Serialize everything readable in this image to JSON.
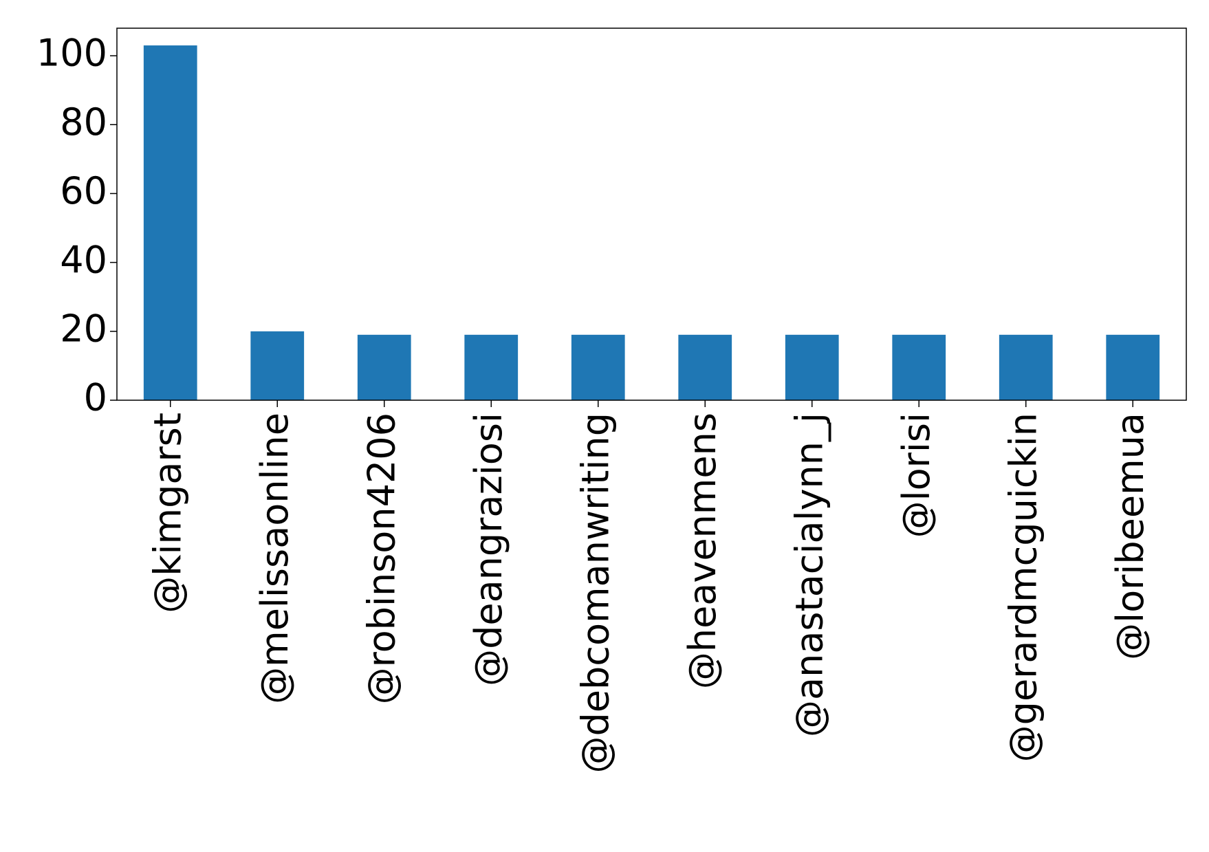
{
  "chart_data": {
    "type": "bar",
    "title": "",
    "xlabel": "",
    "ylabel": "",
    "categories": [
      "@kimgarst",
      "@melissaonline",
      "@robinson4206",
      "@deangraziosi",
      "@debcomanwriting",
      "@heavenmens",
      "@anastacialynn_j",
      "@lorisi",
      "@gerardmcguickin",
      "@loribeemua"
    ],
    "values": [
      103,
      20,
      19,
      19,
      19,
      19,
      19,
      19,
      19,
      19
    ],
    "ylim": [
      0,
      108
    ],
    "yticks": [
      0,
      20,
      40,
      60,
      80,
      100
    ],
    "ytick_labels": [
      "0",
      "20",
      "40",
      "60",
      "80",
      "100"
    ],
    "bar_color": "#1f77b4",
    "grid": false,
    "legend": "none"
  }
}
